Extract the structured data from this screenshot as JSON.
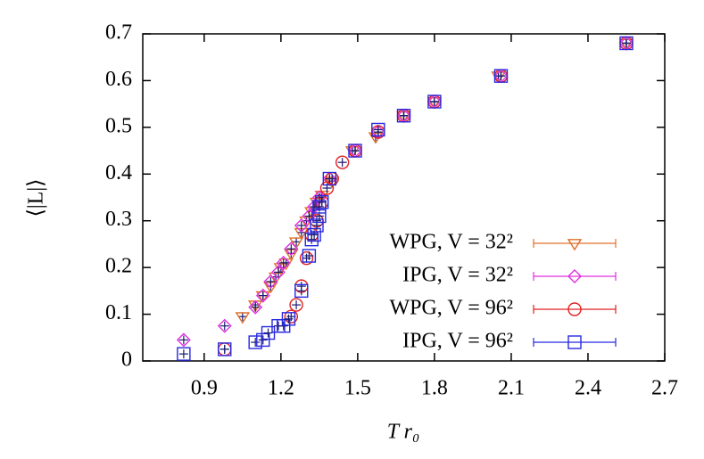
{
  "chart_data": {
    "type": "scatter",
    "x_label": "T r₀",
    "y_label": "⟨|L|⟩",
    "xlim": [
      0.66,
      2.7
    ],
    "ylim": [
      0,
      0.7
    ],
    "xticks": [
      0.9,
      1.2,
      1.5,
      1.8,
      2.1,
      2.4,
      2.7
    ],
    "yticks": [
      0,
      0.1,
      0.2,
      0.3,
      0.4,
      0.5,
      0.6,
      0.7
    ],
    "legend": "lower right",
    "series": [
      {
        "name": "WPG, V = 32²",
        "color": "#e0702a",
        "marker": "triangle-down",
        "x": [
          1.05,
          1.1,
          1.13,
          1.16,
          1.18,
          1.2,
          1.22,
          1.24,
          1.26,
          1.28,
          1.3,
          1.32,
          1.34,
          1.36,
          1.4,
          1.48,
          1.57,
          1.68,
          1.8,
          2.05,
          2.55
        ],
        "values": [
          0.095,
          0.12,
          0.14,
          0.16,
          0.18,
          0.2,
          0.21,
          0.23,
          0.255,
          0.275,
          0.3,
          0.32,
          0.34,
          0.355,
          0.385,
          0.45,
          0.48,
          0.525,
          0.555,
          0.61,
          0.68
        ]
      },
      {
        "name": "IPG, V = 32²",
        "color": "#e030e0",
        "marker": "diamond",
        "x": [
          0.82,
          0.98,
          1.1,
          1.13,
          1.16,
          1.19,
          1.21,
          1.24,
          1.28,
          1.31,
          1.33,
          1.35,
          1.39,
          1.49,
          1.58,
          1.68,
          1.8,
          2.06,
          2.55
        ],
        "values": [
          0.045,
          0.075,
          0.115,
          0.14,
          0.17,
          0.19,
          0.21,
          0.24,
          0.29,
          0.31,
          0.33,
          0.35,
          0.39,
          0.45,
          0.49,
          0.525,
          0.555,
          0.61,
          0.68
        ]
      },
      {
        "name": "WPG, V = 96²",
        "color": "#e02020",
        "marker": "circle",
        "x": [
          0.98,
          1.24,
          1.26,
          1.28,
          1.3,
          1.32,
          1.34,
          1.36,
          1.38,
          1.4,
          1.44,
          1.49,
          1.58,
          1.68,
          1.8,
          2.06,
          2.55
        ],
        "values": [
          0.025,
          0.095,
          0.12,
          0.16,
          0.22,
          0.27,
          0.3,
          0.34,
          0.37,
          0.39,
          0.425,
          0.45,
          0.49,
          0.525,
          0.555,
          0.61,
          0.68
        ]
      },
      {
        "name": "IPG, V = 96²",
        "color": "#2828e0",
        "marker": "square",
        "x": [
          0.82,
          0.98,
          1.1,
          1.13,
          1.15,
          1.19,
          1.21,
          1.23,
          1.28,
          1.31,
          1.32,
          1.33,
          1.34,
          1.35,
          1.35,
          1.36,
          1.39,
          1.49,
          1.58,
          1.68,
          1.8,
          2.06,
          2.55
        ],
        "values": [
          0.015,
          0.025,
          0.04,
          0.045,
          0.06,
          0.075,
          0.075,
          0.09,
          0.15,
          0.225,
          0.26,
          0.27,
          0.29,
          0.31,
          0.33,
          0.34,
          0.39,
          0.45,
          0.495,
          0.525,
          0.555,
          0.61,
          0.68
        ]
      }
    ]
  }
}
